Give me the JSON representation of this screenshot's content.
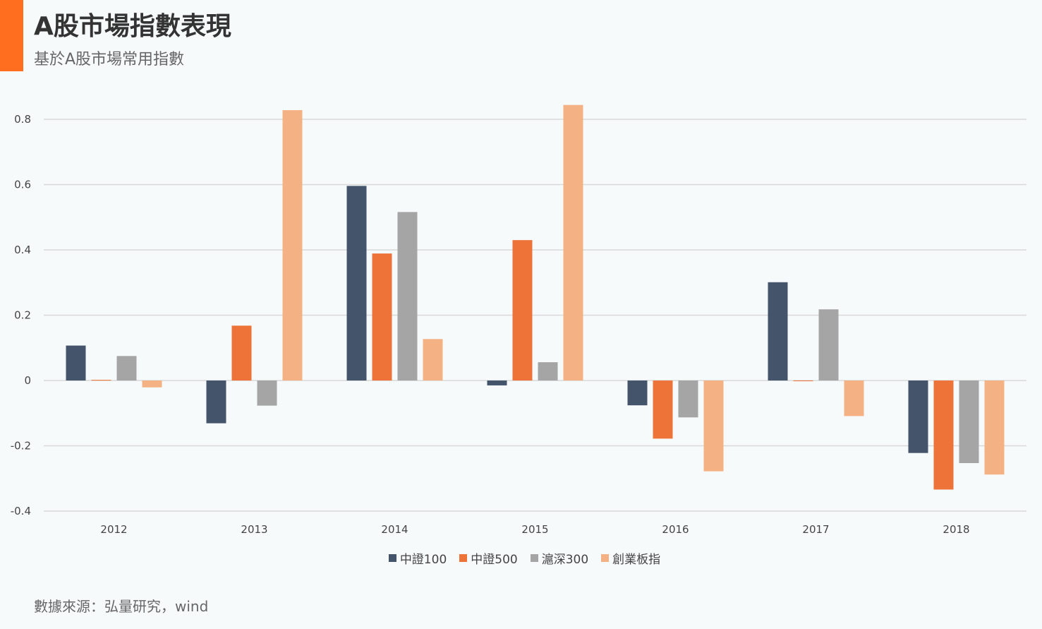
{
  "header": {
    "title": "A股市場指數表現",
    "subtitle": "基於A股市場常用指數",
    "accent_color": "#ff6d1f"
  },
  "footer": {
    "source": "數據來源：弘量研究，wind"
  },
  "chart_data": {
    "type": "bar",
    "categories": [
      "2012",
      "2013",
      "2014",
      "2015",
      "2016",
      "2017",
      "2018"
    ],
    "series": [
      {
        "name": "中證100",
        "color": "#44546a",
        "values": [
          0.107,
          -0.131,
          0.596,
          -0.015,
          -0.076,
          0.301,
          -0.222
        ]
      },
      {
        "name": "中證500",
        "color": "#ed7338",
        "values": [
          0.002,
          0.168,
          0.389,
          0.43,
          -0.178,
          -0.002,
          -0.334
        ]
      },
      {
        "name": "滬深300",
        "color": "#a5a5a5",
        "values": [
          0.075,
          -0.077,
          0.516,
          0.056,
          -0.113,
          0.218,
          -0.253
        ]
      },
      {
        "name": "創業板指",
        "color": "#f4b183",
        "values": [
          -0.021,
          0.828,
          0.127,
          0.844,
          -0.278,
          -0.109,
          -0.288
        ]
      }
    ],
    "ylim": [
      -0.4,
      0.8
    ],
    "yticks": [
      0.8,
      0.6,
      0.4,
      0.2,
      0,
      -0.2,
      -0.4
    ],
    "ytick_labels": [
      "0.8",
      "0.6",
      "0.4",
      "0.2",
      "0",
      "-0.2",
      "-0.4"
    ],
    "grid": true,
    "legend_position": "bottom-center"
  }
}
